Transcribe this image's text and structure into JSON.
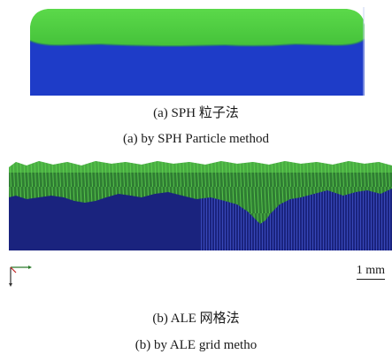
{
  "panel_a": {
    "caption_cn": "(a) SPH 粒子法",
    "caption_en": "(a) by SPH Particle method"
  },
  "panel_b": {
    "caption_cn": "(b) ALE 网格法",
    "caption_en": "(b) by ALE grid metho",
    "scale_label": "1 mm"
  },
  "colors": {
    "substrate_blue": "#1e3cc8",
    "deep_blue": "#1a237e",
    "coating_green": "#4fd43c",
    "dark_green": "#2e7d32",
    "mid_green": "#3fa53a"
  },
  "icons": [
    "axes-triad-icon"
  ]
}
